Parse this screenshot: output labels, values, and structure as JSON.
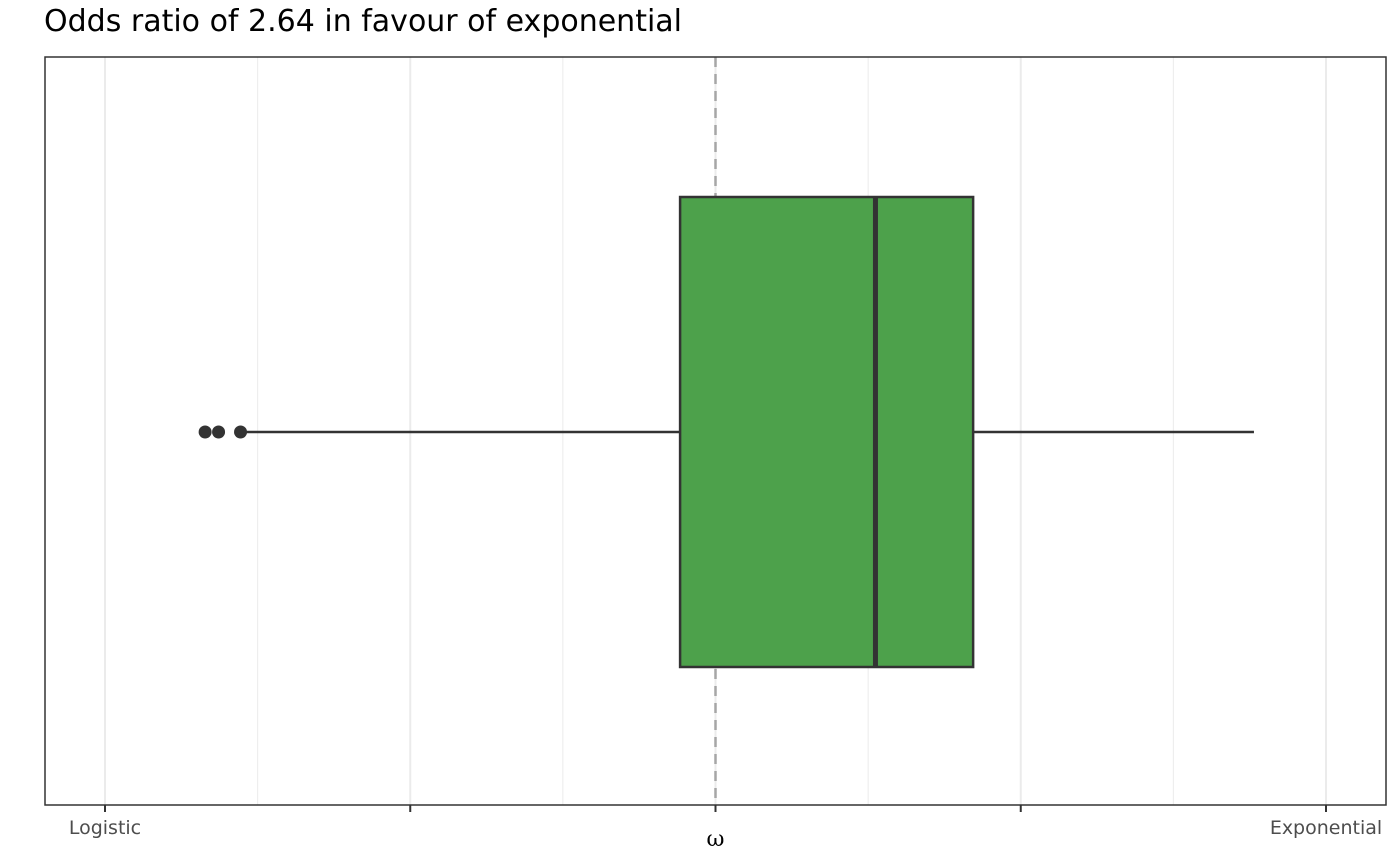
{
  "chart_data": {
    "type": "boxplot",
    "title": "Odds ratio of 2.64 in favour of exponential",
    "xlabel": "ω",
    "ylabel": "",
    "xlim": [
      -0.05,
      1.05
    ],
    "x_ticks": [
      0,
      0.25,
      0.5,
      0.75,
      1
    ],
    "x_tick_labels": [
      "Logistic",
      "",
      "",
      "",
      "Exponential"
    ],
    "reference_line": 0.5,
    "box": {
      "lower_whisker": 0.111,
      "q1": 0.471,
      "median": 0.631,
      "q3": 0.711,
      "upper_whisker": 0.941
    },
    "outliers": [
      0.082,
      0.093,
      0.111
    ],
    "grid": true,
    "colors": {
      "box_fill": "#4da14b",
      "outline": "#333333",
      "reference": "#a6a6a6",
      "grid": "#ebebeb",
      "panel_border": "#333333"
    }
  }
}
